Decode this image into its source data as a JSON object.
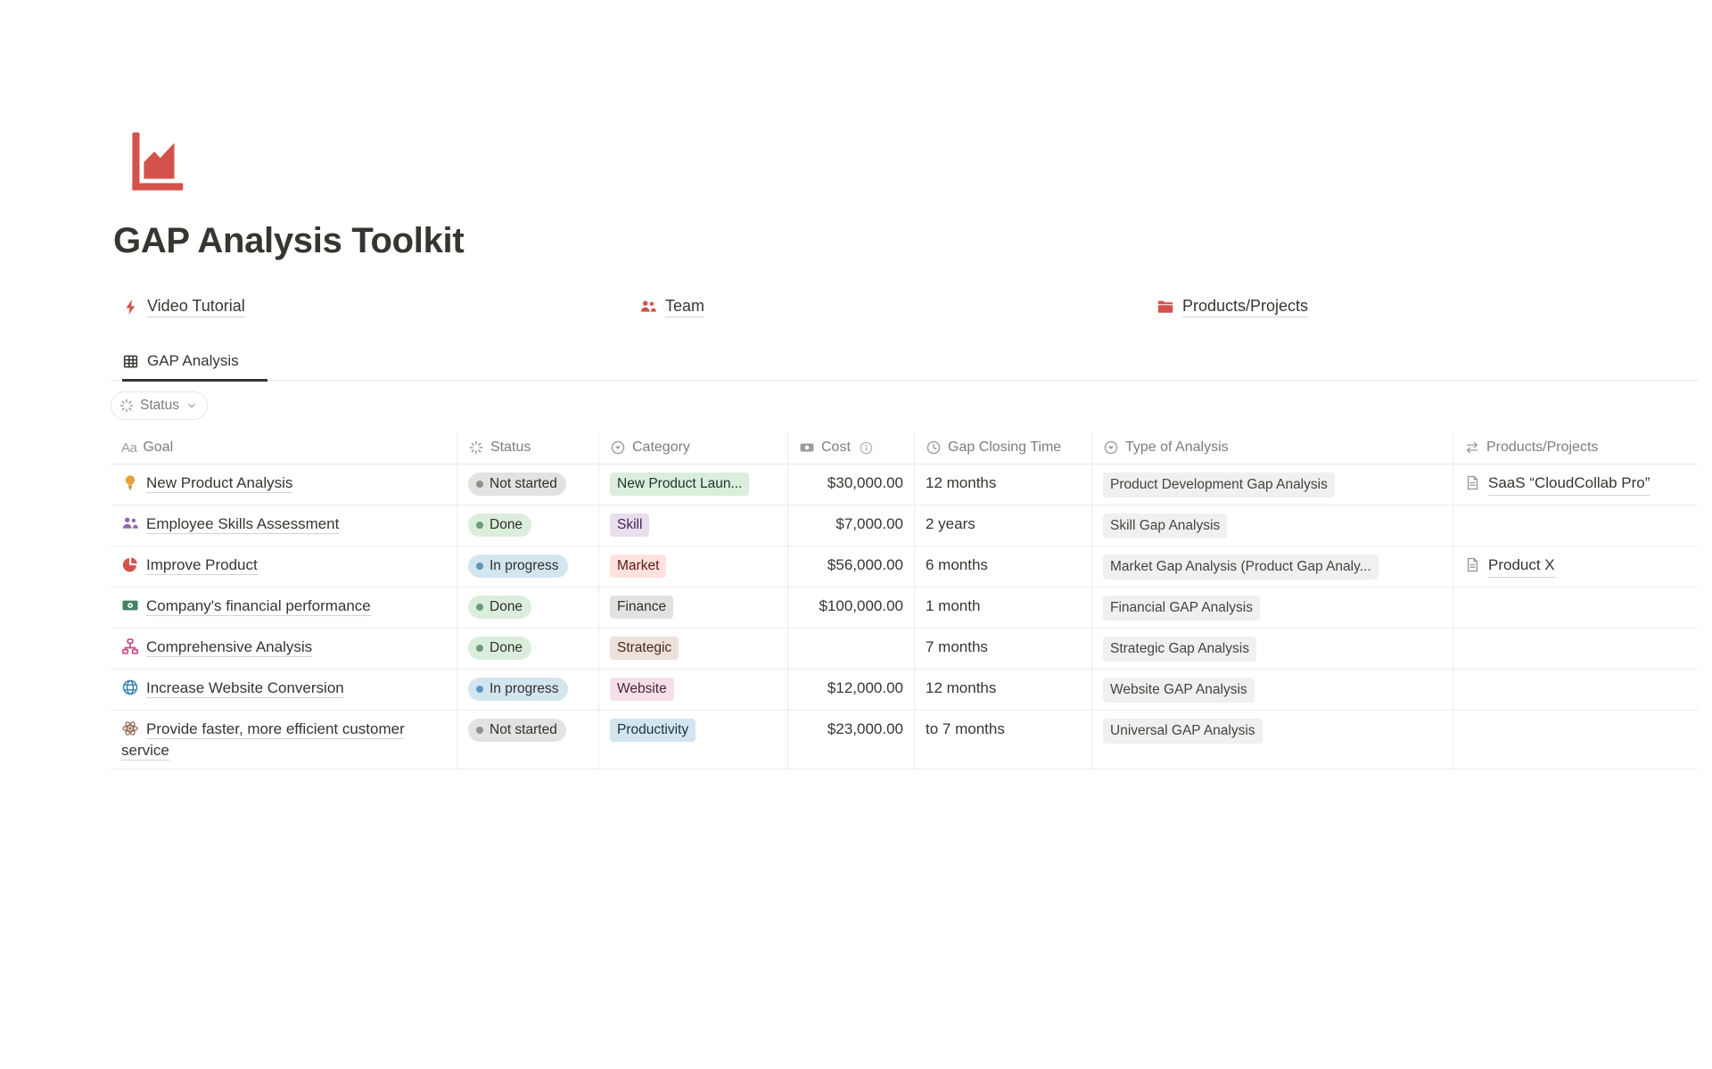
{
  "page": {
    "title": "GAP Analysis Toolkit",
    "icon": "red-area-chart-icon"
  },
  "links": [
    {
      "label": "Video Tutorial",
      "icon": "lightning-icon"
    },
    {
      "label": "Team",
      "icon": "team-icon"
    },
    {
      "label": "Products/Projects",
      "icon": "folder-icon"
    }
  ],
  "tabs": [
    {
      "label": "GAP Analysis",
      "icon": "table-view-icon",
      "active": true
    }
  ],
  "filters": [
    {
      "label": "Status",
      "icon": "status-spinner-icon"
    }
  ],
  "table": {
    "columns": [
      {
        "label": "Goal",
        "icon": "text-icon"
      },
      {
        "label": "Status",
        "icon": "status-spinner-icon"
      },
      {
        "label": "Category",
        "icon": "select-icon"
      },
      {
        "label": "Cost",
        "icon": "money-icon",
        "info_icon": true
      },
      {
        "label": "Gap Closing Time",
        "icon": "clock-icon"
      },
      {
        "label": "Type of Analysis",
        "icon": "select-icon"
      },
      {
        "label": "Products/Projects",
        "icon": "relation-icon"
      }
    ],
    "rows": [
      {
        "icon": "lightbulb-icon",
        "goal": "New Product Analysis",
        "status": "Not started",
        "status_color": "gray",
        "category": "New Product Laun...",
        "category_color": "green",
        "cost": "$30,000.00",
        "gap_time": "12 months",
        "analysis": "Product Development Gap Analysis",
        "project": "SaaS “CloudCollab Pro”"
      },
      {
        "icon": "people-purple-icon",
        "goal": "Employee Skills Assessment",
        "status": "Done",
        "status_color": "green",
        "category": "Skill",
        "category_color": "purple",
        "cost": "$7,000.00",
        "gap_time": "2 years",
        "analysis": "Skill Gap Analysis",
        "project": ""
      },
      {
        "icon": "pie-chart-icon",
        "goal": "Improve Product",
        "status": "In progress",
        "status_color": "blue",
        "category": "Market",
        "category_color": "red",
        "cost": "$56,000.00",
        "gap_time": "6 months",
        "analysis": "Market Gap Analysis (Product Gap Analy...",
        "project": "Product X"
      },
      {
        "icon": "money-green-icon",
        "goal": "Company's financial performance",
        "status": "Done",
        "status_color": "green",
        "category": "Finance",
        "category_color": "gray",
        "cost": "$100,000.00",
        "gap_time": "1 month",
        "analysis": "Financial GAP Analysis",
        "project": ""
      },
      {
        "icon": "org-chart-icon",
        "goal": "Comprehensive Analysis",
        "status": "Done",
        "status_color": "green",
        "category": "Strategic",
        "category_color": "brown",
        "cost": "",
        "gap_time": "7 months",
        "analysis": "Strategic Gap Analysis",
        "project": ""
      },
      {
        "icon": "globe-icon",
        "goal": "Increase Website Conversion",
        "status": "In progress",
        "status_color": "blue",
        "category": "Website",
        "category_color": "pink",
        "cost": "$12,000.00",
        "gap_time": "12 months",
        "analysis": "Website GAP Analysis",
        "project": ""
      },
      {
        "icon": "atom-icon",
        "goal": "Provide faster, more efficient customer service",
        "status": "Not started",
        "status_color": "gray",
        "category": "Productivity",
        "category_color": "blue",
        "cost": "$23,000.00",
        "gap_time": "to 7 months",
        "analysis": "Universal GAP Analysis",
        "project": ""
      }
    ]
  },
  "palette": {
    "accent_red": "#D4524C",
    "status": {
      "gray": {
        "bg": "#E3E2E0",
        "dot": "#91918E"
      },
      "green": {
        "bg": "#DBEDDB",
        "dot": "#6C9B7D"
      },
      "blue": {
        "bg": "#D3E5EF",
        "dot": "#5B97BD"
      }
    },
    "category": {
      "green": {
        "bg": "#DBEDDB",
        "text": "#1C3829"
      },
      "purple": {
        "bg": "#E8DEEE",
        "text": "#412454"
      },
      "red": {
        "bg": "#FFE2DD",
        "text": "#5D1715"
      },
      "gray": {
        "bg": "#E3E2E0",
        "text": "#32302C"
      },
      "brown": {
        "bg": "#EEE0DA",
        "text": "#442A1E"
      },
      "pink": {
        "bg": "#F5E0E9",
        "text": "#4C2337"
      },
      "blue": {
        "bg": "#D3E5EF",
        "text": "#183347"
      }
    },
    "type_tag": {
      "bg": "#F1F0EF",
      "text": "#454440"
    }
  }
}
